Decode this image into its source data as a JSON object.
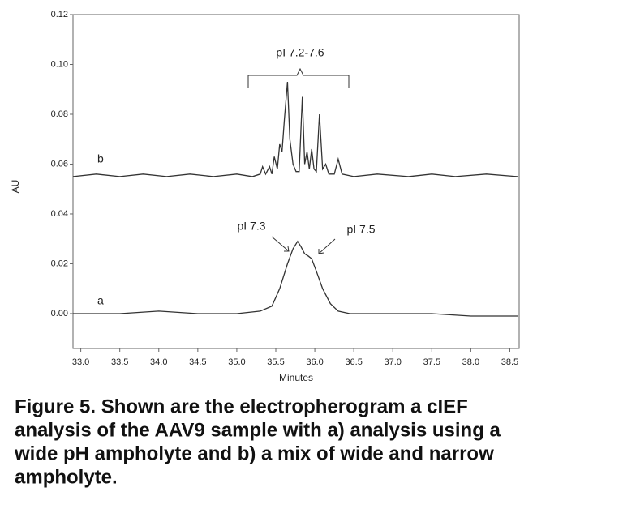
{
  "chart_data": {
    "type": "line",
    "xlabel": "Minutes",
    "ylabel": "AU",
    "xlim": [
      32.9,
      38.62
    ],
    "ylim": [
      -0.014,
      0.12
    ],
    "xticks": [
      {
        "value": 33,
        "label": "33.0"
      },
      33.5,
      {
        "value": 34,
        "label": "34.0"
      },
      34.5,
      {
        "value": 35,
        "label": "35.0"
      },
      35.5,
      {
        "value": 36,
        "label": "36.0"
      },
      36.5,
      {
        "value": 37,
        "label": "37.0"
      },
      37.5,
      {
        "value": 38,
        "label": "38.0"
      },
      38.5
    ],
    "yticks": [
      {
        "value": 0,
        "label": "0.00"
      },
      0.02,
      0.04,
      0.06,
      0.08,
      {
        "value": 0.1,
        "label": "0.10"
      },
      0.12
    ],
    "series": [
      {
        "name": "a",
        "color": "#333333",
        "x": [
          32.9,
          33.5,
          34.0,
          34.5,
          35.0,
          35.3,
          35.45,
          35.55,
          35.65,
          35.72,
          35.78,
          35.82,
          35.87,
          35.92,
          35.96,
          36.02,
          36.1,
          36.2,
          36.3,
          36.45,
          36.7,
          37.0,
          37.5,
          38.0,
          38.6
        ],
        "values": [
          0,
          0,
          0.001,
          0,
          0,
          0.001,
          0.003,
          0.01,
          0.02,
          0.026,
          0.029,
          0.027,
          0.024,
          0.023,
          0.022,
          0.017,
          0.01,
          0.004,
          0.001,
          0,
          0,
          0,
          0,
          -0.001,
          -0.001
        ]
      },
      {
        "name": "b",
        "color": "#333333",
        "x": [
          32.9,
          33.2,
          33.5,
          33.8,
          34.1,
          34.4,
          34.7,
          35.0,
          35.2,
          35.3,
          35.33,
          35.37,
          35.42,
          35.45,
          35.48,
          35.52,
          35.55,
          35.58,
          35.61,
          35.65,
          35.68,
          35.72,
          35.76,
          35.8,
          35.84,
          35.87,
          35.9,
          35.93,
          35.96,
          35.99,
          36.02,
          36.06,
          36.1,
          36.14,
          36.18,
          36.25,
          36.3,
          36.35,
          36.5,
          36.8,
          37.2,
          37.5,
          37.8,
          38.2,
          38.6
        ],
        "values": [
          0.055,
          0.056,
          0.055,
          0.056,
          0.055,
          0.056,
          0.055,
          0.056,
          0.055,
          0.056,
          0.059,
          0.056,
          0.059,
          0.056,
          0.063,
          0.058,
          0.068,
          0.065,
          0.078,
          0.093,
          0.07,
          0.06,
          0.057,
          0.057,
          0.087,
          0.06,
          0.065,
          0.058,
          0.066,
          0.058,
          0.057,
          0.08,
          0.058,
          0.06,
          0.056,
          0.056,
          0.062,
          0.056,
          0.055,
          0.056,
          0.055,
          0.056,
          0.055,
          0.056,
          0.055
        ]
      }
    ],
    "annotations": [
      "pI 7.2-7.6",
      "pI 7.3",
      "pI 7.5"
    ],
    "caption": [
      "Figure 5. Shown are the electropherogram a cIEF",
      "analysis of the AAV9 sample with a) analysis using a",
      "wide pH ampholyte and b) a mix of wide and narrow",
      "ampholyte."
    ]
  }
}
